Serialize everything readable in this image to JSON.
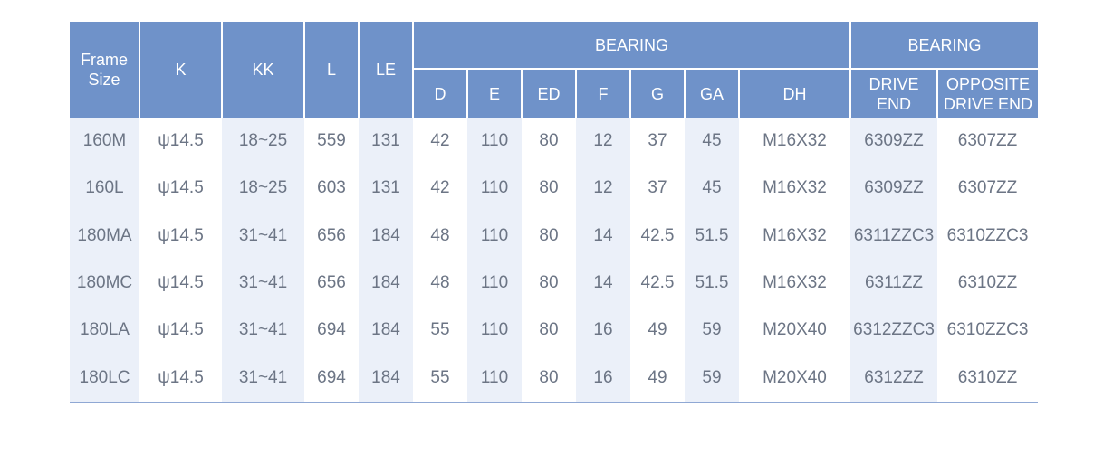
{
  "table": {
    "headers": {
      "frame_size_line1": "Frame",
      "frame_size_line2": "Size",
      "k": "K",
      "kk": "KK",
      "l": "L",
      "le": "LE",
      "bearing_group_1": "BEARING",
      "bearing_group_2": "BEARING",
      "d": "D",
      "e": "E",
      "ed": "ED",
      "f": "F",
      "g": "G",
      "ga": "GA",
      "dh": "DH",
      "drive_end_line1": "DRIVE",
      "drive_end_line2": "END",
      "opposite_line1": "OPPOSITE",
      "opposite_line2": "DRIVE END"
    },
    "rows": [
      [
        "160M",
        "ψ14.5",
        "18~25",
        "559",
        "131",
        "42",
        "110",
        "80",
        "12",
        "37",
        "45",
        "M16X32",
        "6309ZZ",
        "6307ZZ"
      ],
      [
        "160L",
        "ψ14.5",
        "18~25",
        "603",
        "131",
        "42",
        "110",
        "80",
        "12",
        "37",
        "45",
        "M16X32",
        "6309ZZ",
        "6307ZZ"
      ],
      [
        "180MA",
        "ψ14.5",
        "31~41",
        "656",
        "184",
        "48",
        "110",
        "80",
        "14",
        "42.5",
        "51.5",
        "M16X32",
        "6311ZZC3",
        "6310ZZC3"
      ],
      [
        "180MC",
        "ψ14.5",
        "31~41",
        "656",
        "184",
        "48",
        "110",
        "80",
        "14",
        "42.5",
        "51.5",
        "M16X32",
        "6311ZZ",
        "6310ZZ"
      ],
      [
        "180LA",
        "ψ14.5",
        "31~41",
        "694",
        "184",
        "55",
        "110",
        "80",
        "16",
        "49",
        "59",
        "M20X40",
        "6312ZZC3",
        "6310ZZC3"
      ],
      [
        "180LC",
        "ψ14.5",
        "31~41",
        "694",
        "184",
        "55",
        "110",
        "80",
        "16",
        "49",
        "59",
        "M20X40",
        "6312ZZ",
        "6310ZZ"
      ]
    ]
  },
  "colors": {
    "header_bg": "#6f92c9",
    "header_text": "#ffffff",
    "shade_column_bg": "#ebf0f9",
    "body_text": "#6c7585",
    "bottom_rule": "#8fa8d4"
  }
}
